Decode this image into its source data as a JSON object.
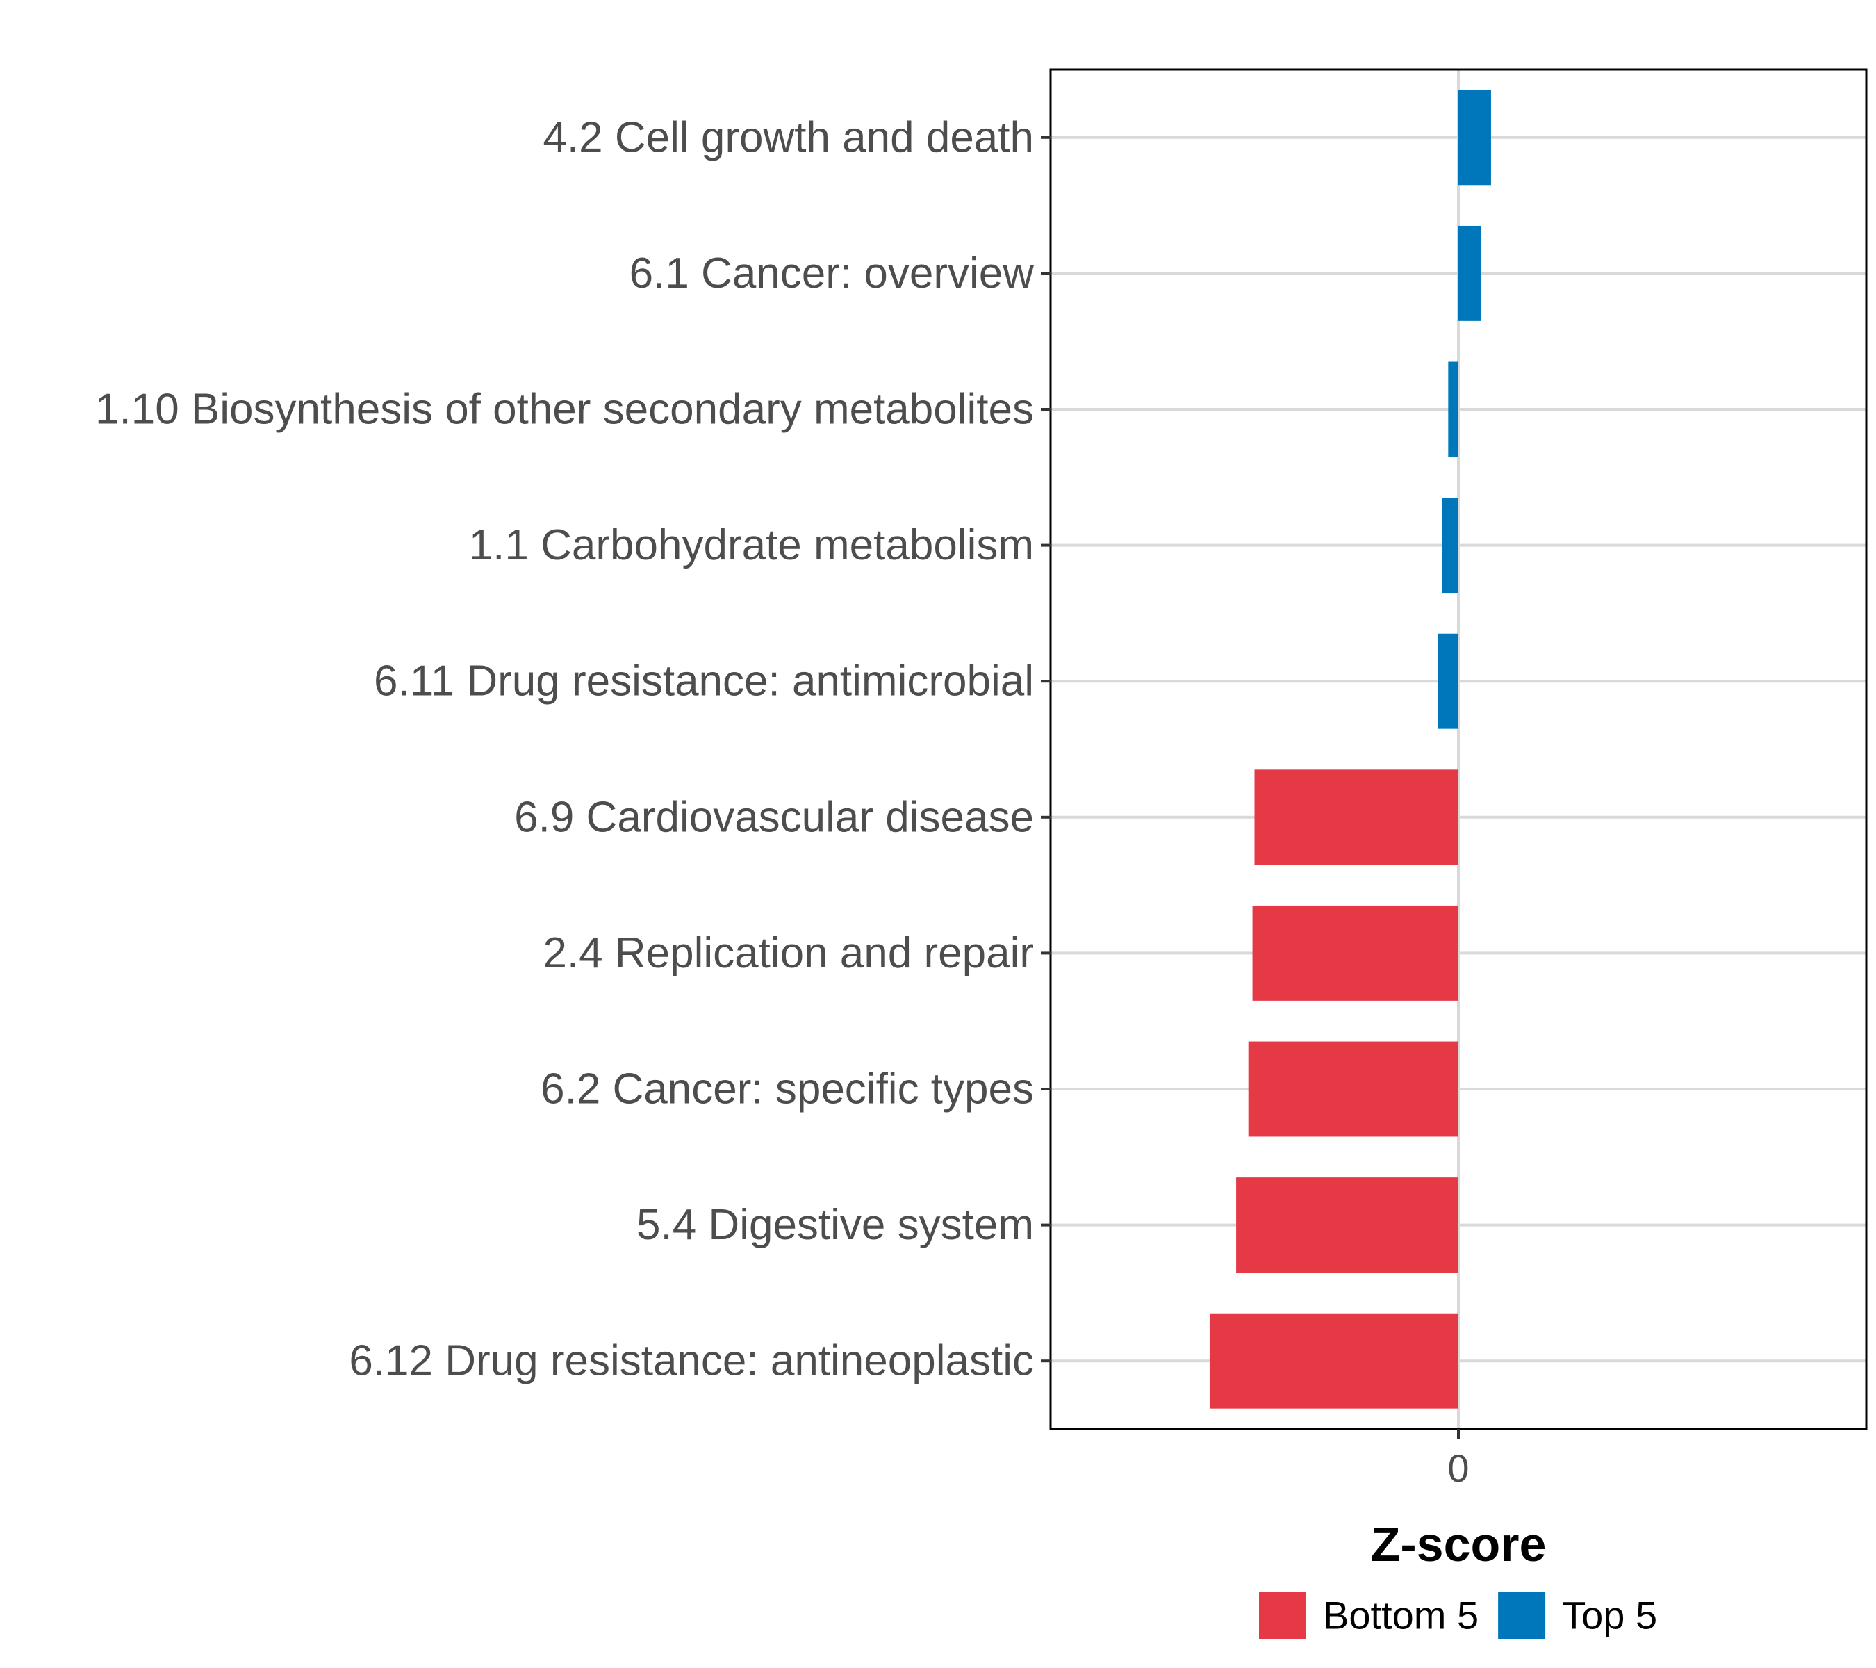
{
  "chart_data": {
    "type": "bar",
    "orientation": "horizontal",
    "title": "",
    "xlabel": "Z-score",
    "ylabel": "",
    "grid": true,
    "legend_position": "bottom",
    "x_ticks": [
      0
    ],
    "x_tick_labels": [
      "0"
    ],
    "xlim": [
      -1.0,
      1.0
    ],
    "categories": [
      "4.2 Cell growth and death",
      "6.1 Cancer: overview",
      "1.10 Biosynthesis of other secondary metabolites",
      "1.1 Carbohydrate metabolism",
      "6.11 Drug resistance: antimicrobial",
      "6.9 Cardiovascular disease",
      "2.4 Replication and repair",
      "6.2 Cancer: specific types",
      "5.4 Digestive system",
      "6.12 Drug resistance: antineoplastic"
    ],
    "values": [
      0.08,
      0.055,
      -0.025,
      -0.04,
      -0.05,
      -0.5,
      -0.505,
      -0.515,
      -0.545,
      -0.61
    ],
    "groups": [
      "Top 5",
      "Top 5",
      "Top 5",
      "Top 5",
      "Top 5",
      "Bottom 5",
      "Bottom 5",
      "Bottom 5",
      "Bottom 5",
      "Bottom 5"
    ],
    "legend": [
      {
        "label": "Bottom 5",
        "color": "#E63946"
      },
      {
        "label": "Top 5",
        "color": "#0077BB"
      }
    ]
  }
}
